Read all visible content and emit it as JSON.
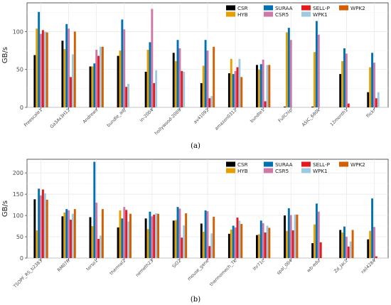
{
  "legend_series": [
    "CSR",
    "HYB",
    "SURAA",
    "CSR5",
    "SELL-P",
    "WPK1",
    "WPK2"
  ],
  "colors": [
    "#000000",
    "#E69F00",
    "#0072B2",
    "#CC79A7",
    "#E41A1C",
    "#9ECAE1",
    "#D55E00"
  ],
  "chart_data": [
    {
      "type": "bar",
      "caption": "(a)",
      "ylabel": "GB/s",
      "ylim": [
        0,
        138
      ],
      "yticks": [
        0,
        50,
        100
      ],
      "grid": true,
      "legend_position": "top-right",
      "categories": [
        "Freescale1",
        "Ga3As3H12",
        "Andrews",
        "bundle_adj",
        "in-2004",
        "hollywood-2009",
        "av41092",
        "amazon0312",
        "bundle1",
        "FullChip",
        "ASIC_680k",
        "12month1",
        "flickr"
      ],
      "series": [
        {
          "name": "CSR",
          "values": [
            69,
            88,
            54,
            68,
            47,
            72,
            32,
            45,
            56,
            1,
            1,
            44,
            20
          ]
        },
        {
          "name": "HYB",
          "values": [
            104,
            77,
            54,
            75,
            76,
            61,
            55,
            64,
            50,
            99,
            73,
            61,
            53
          ]
        },
        {
          "name": "SURAA",
          "values": [
            126,
            110,
            58,
            116,
            86,
            89,
            89,
            44,
            57,
            105,
            114,
            78,
            72
          ]
        },
        {
          "name": "CSR5",
          "values": [
            97,
            104,
            76,
            103,
            130,
            78,
            75,
            48,
            63,
            89,
            96,
            71,
            59
          ]
        },
        {
          "name": "SELL-P",
          "values": [
            102,
            40,
            68,
            27,
            32,
            48,
            12,
            53,
            8,
            0,
            0,
            5,
            12
          ]
        },
        {
          "name": "WPK1",
          "values": [
            100,
            70,
            80,
            31,
            49,
            47,
            15,
            64,
            56,
            0,
            0,
            0,
            20
          ]
        },
        {
          "name": "WPK2",
          "values": [
            99,
            100,
            80,
            0,
            0,
            0,
            80,
            40,
            56,
            0,
            0,
            0,
            0
          ]
        }
      ]
    },
    {
      "type": "bar",
      "caption": "(b)",
      "ylabel": "GB/s",
      "ylim": [
        0,
        232
      ],
      "yticks": [
        0,
        50,
        100,
        150,
        200
      ],
      "grid": true,
      "legend_position": "top-right",
      "categories": [
        "TSOPF_RS_b2383",
        "RM07R",
        "torso1",
        "thermal2",
        "nemeth23",
        "SiO2",
        "mouse_gene",
        "thermomech_TK",
        "lhr71c",
        "spal_004",
        "wb-edu",
        "Zd_Jac2",
        "rail4284"
      ],
      "series": [
        {
          "name": "CSR",
          "values": [
            138,
            98,
            96,
            72,
            93,
            88,
            81,
            57,
            54,
            100,
            35,
            66,
            44
          ]
        },
        {
          "name": "HYB",
          "values": [
            65,
            107,
            75,
            112,
            68,
            89,
            62,
            67,
            56,
            64,
            79,
            60,
            64
          ]
        },
        {
          "name": "SURAA",
          "values": [
            163,
            115,
            226,
            93,
            109,
            120,
            112,
            76,
            88,
            117,
            128,
            74,
            140
          ]
        },
        {
          "name": "CSR5",
          "values": [
            147,
            112,
            130,
            120,
            98,
            116,
            110,
            72,
            82,
            101,
            109,
            50,
            73
          ]
        },
        {
          "name": "SELL-P",
          "values": [
            161,
            90,
            45,
            113,
            102,
            48,
            28,
            95,
            60,
            65,
            37,
            27,
            4
          ]
        },
        {
          "name": "WPK1",
          "values": [
            152,
            104,
            53,
            86,
            105,
            77,
            58,
            88,
            76,
            102,
            0,
            39,
            0
          ]
        },
        {
          "name": "WPK2",
          "values": [
            137,
            115,
            115,
            104,
            104,
            105,
            97,
            80,
            71,
            102,
            0,
            66,
            0
          ]
        }
      ]
    }
  ]
}
